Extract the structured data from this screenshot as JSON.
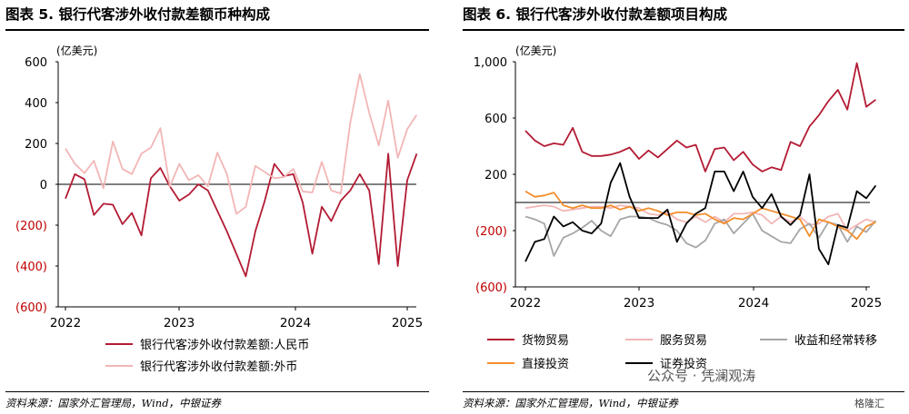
{
  "panels": {
    "left_title": "图表 5. 银行代客涉外收付款差额币种构成",
    "right_title": "图表 6. 银行代客涉外收付款差额项目构成",
    "source_left": "资料来源：国家外汇管理局，Wind，中银证券",
    "source_right": "资料来源：国家外汇管理局，Wind，中银证券"
  },
  "watermark": "公众号 · 凭澜观涛",
  "logo_text": "格隆汇",
  "colors": {
    "dark_red": "#b31b34",
    "light_pink": "#f2b6b6",
    "grey": "#a6a6a6",
    "orange": "#f28e2b",
    "black": "#000000",
    "neg_label": "#c00000"
  },
  "chart_data": [
    {
      "type": "line",
      "title": "图表 5. 银行代客涉外收付款差额币种构成",
      "unit_label": "(亿美元)",
      "x_ticks": [
        "2022",
        "2023",
        "2024",
        "2025"
      ],
      "y_ticks": [
        "600",
        "400",
        "200",
        "0",
        "(200)",
        "(400)",
        "(600)"
      ],
      "ylim": [
        -600,
        600
      ],
      "x_range": [
        "2022-01",
        "2025-02"
      ],
      "series": [
        {
          "name": "银行代客涉外收付款差额:人民币",
          "color": "#b31b34",
          "values": [
            -70,
            50,
            25,
            -150,
            -95,
            -100,
            -195,
            -140,
            -250,
            30,
            80,
            -10,
            -80,
            -50,
            0,
            -30,
            -130,
            -230,
            -340,
            -450,
            -230,
            -80,
            100,
            40,
            50,
            -90,
            -340,
            -110,
            -180,
            -80,
            -30,
            50,
            -30,
            -390,
            150,
            -400,
            20,
            150
          ]
        },
        {
          "name": "银行代客涉外收付款差额:外币",
          "color": "#f2b6b6",
          "values": [
            175,
            100,
            55,
            115,
            -20,
            210,
            75,
            50,
            150,
            180,
            275,
            -10,
            100,
            20,
            45,
            -10,
            155,
            50,
            -145,
            -110,
            90,
            60,
            30,
            35,
            75,
            -35,
            -40,
            110,
            -30,
            -45,
            300,
            540,
            350,
            190,
            410,
            130,
            270,
            340
          ]
        }
      ]
    },
    {
      "type": "line",
      "title": "图表 6. 银行代客涉外收付款差额项目构成",
      "unit_label": "(亿美元)",
      "x_ticks": [
        "2022",
        "2023",
        "2024",
        "2025"
      ],
      "y_ticks": [
        "1,000",
        "600",
        "200",
        "(200)",
        "(600)"
      ],
      "ylim": [
        -600,
        1000
      ],
      "x_range": [
        "2022-01",
        "2025-02"
      ],
      "series": [
        {
          "name": "货物贸易",
          "color": "#b31b34",
          "values": [
            510,
            440,
            400,
            420,
            410,
            530,
            360,
            330,
            330,
            340,
            360,
            390,
            310,
            370,
            320,
            380,
            440,
            390,
            410,
            220,
            380,
            390,
            300,
            360,
            270,
            220,
            250,
            230,
            430,
            400,
            540,
            620,
            720,
            800,
            660,
            990,
            680,
            730
          ]
        },
        {
          "name": "服务贸易",
          "color": "#f2b6b6",
          "values": [
            -40,
            -30,
            -20,
            -30,
            -60,
            -50,
            -40,
            -30,
            -30,
            -40,
            -20,
            -30,
            -40,
            -80,
            -90,
            -70,
            -120,
            -140,
            -100,
            -140,
            -100,
            -140,
            -80,
            -80,
            -70,
            -90,
            -150,
            -100,
            -140,
            -100,
            -160,
            -150,
            -100,
            -80,
            -200,
            -160,
            -120,
            -140
          ]
        },
        {
          "name": "收益和经常转移",
          "color": "#a6a6a6",
          "values": [
            -100,
            -120,
            -150,
            -380,
            -250,
            -220,
            -180,
            -130,
            -200,
            -240,
            -120,
            -100,
            -100,
            -110,
            -140,
            -160,
            -200,
            -290,
            -320,
            -270,
            -150,
            -120,
            -220,
            -150,
            -80,
            -200,
            -240,
            -280,
            -290,
            -190,
            -150,
            -250,
            -140,
            -160,
            -280,
            -170,
            -210,
            -130
          ]
        },
        {
          "name": "直接投资",
          "color": "#f28e2b",
          "values": [
            80,
            40,
            50,
            70,
            -20,
            -40,
            -20,
            -40,
            -40,
            -20,
            -50,
            -30,
            -60,
            -40,
            -60,
            -90,
            -70,
            -70,
            -90,
            -80,
            -120,
            -150,
            -110,
            -120,
            -80,
            -40,
            -60,
            -80,
            -100,
            -120,
            -240,
            -120,
            -140,
            -170,
            -200,
            -260,
            -170,
            -140
          ]
        },
        {
          "name": "证券投资",
          "color": "#000000",
          "values": [
            -420,
            -280,
            -260,
            -100,
            -170,
            -140,
            -200,
            -220,
            -150,
            140,
            280,
            40,
            -110,
            -110,
            -110,
            -50,
            -280,
            -150,
            -80,
            -40,
            220,
            220,
            80,
            220,
            40,
            -40,
            60,
            -100,
            -160,
            -90,
            200,
            -330,
            -440,
            -160,
            -180,
            80,
            30,
            120
          ]
        }
      ]
    }
  ]
}
